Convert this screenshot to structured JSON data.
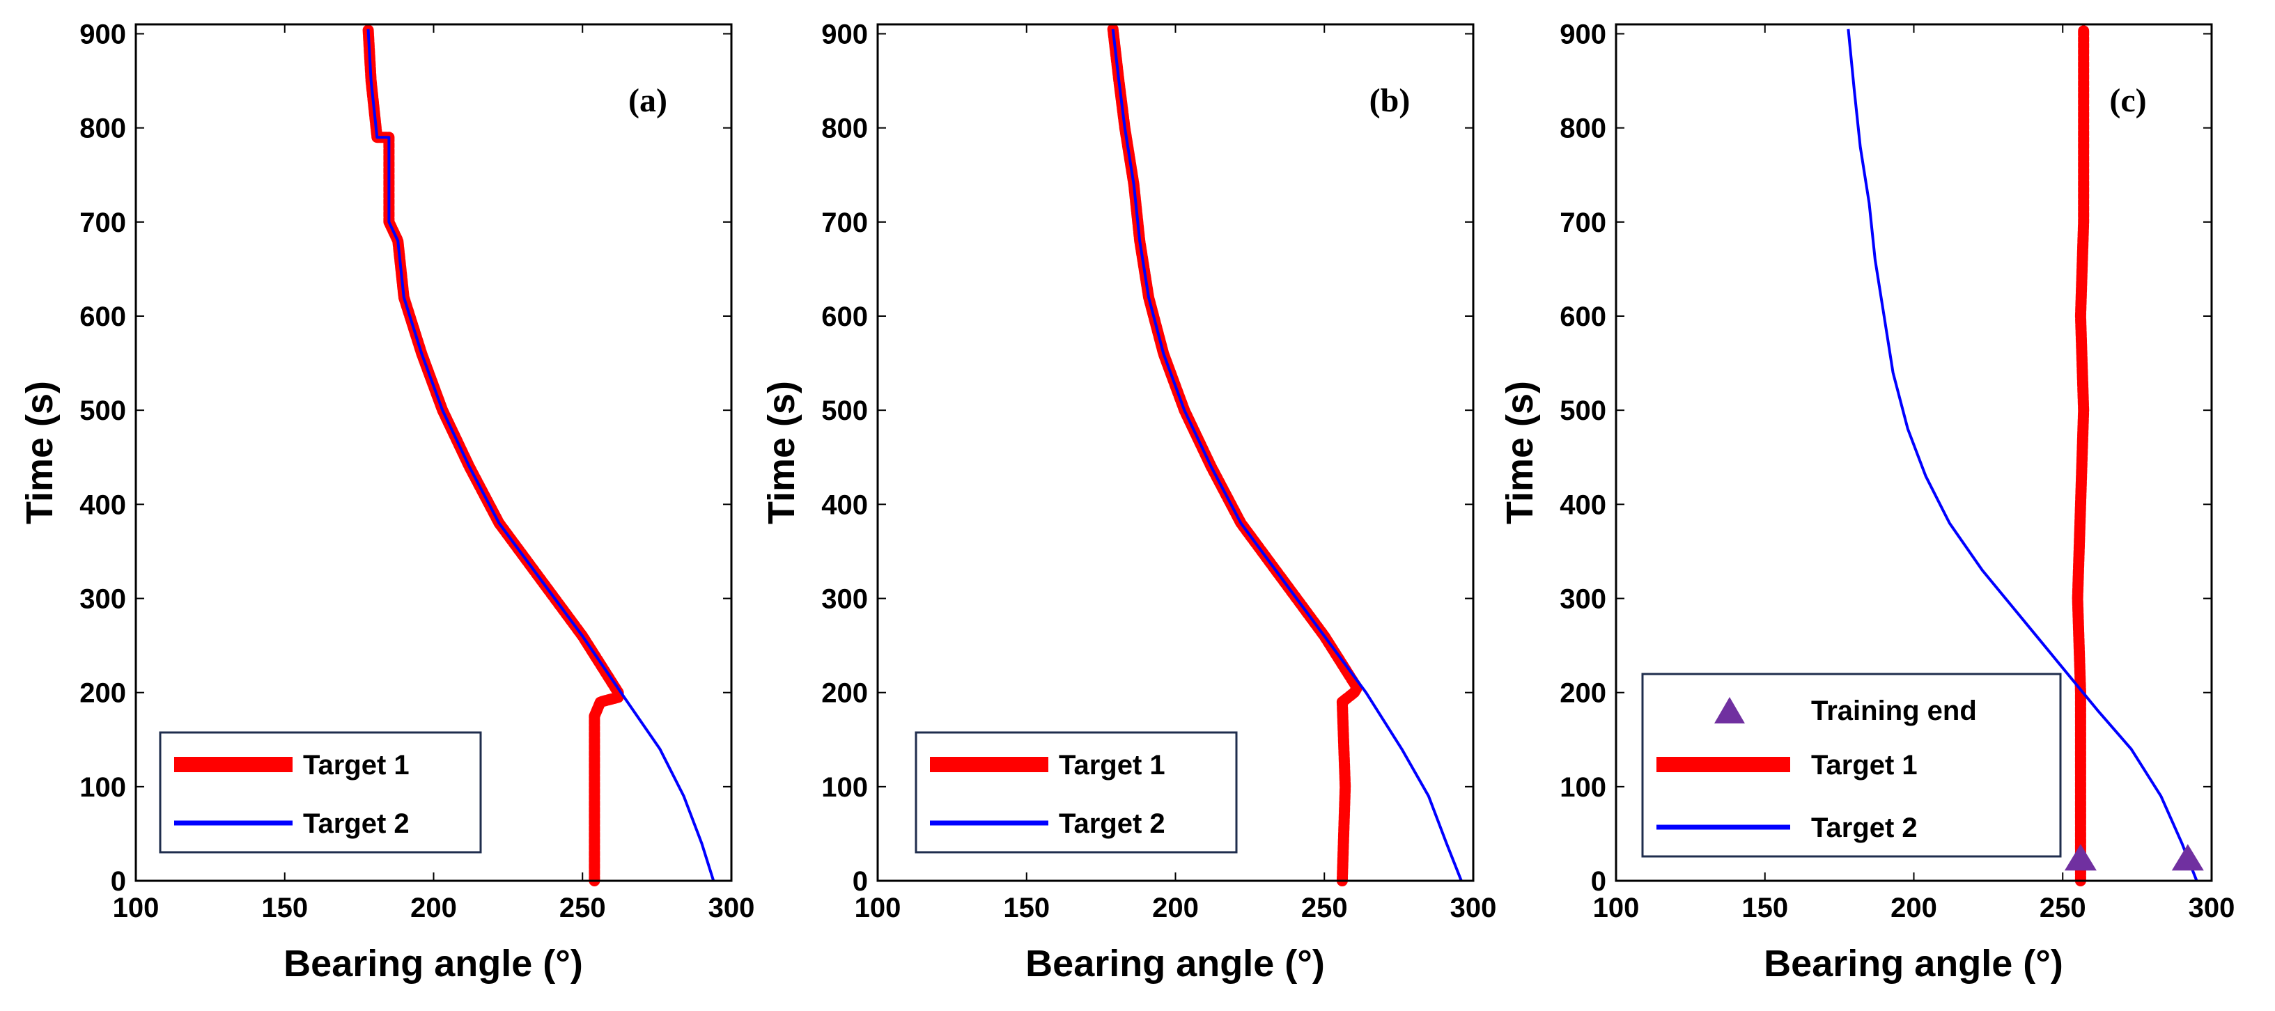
{
  "chart_data": [
    {
      "type": "line",
      "panel_label": "(a)",
      "xlabel": "Bearing angle (°)",
      "ylabel": "Time (s)",
      "xlim": [
        100,
        300
      ],
      "ylim": [
        0,
        910
      ],
      "xticks": [
        "100",
        "150",
        "200",
        "250",
        "300"
      ],
      "yticks": [
        "0",
        "100",
        "200",
        "300",
        "400",
        "500",
        "600",
        "700",
        "800",
        "900"
      ],
      "series": [
        {
          "name": "Target 1",
          "color": "#ff0000",
          "style": "thick-noisy",
          "points": [
            [
              254,
              0
            ],
            [
              254,
              100
            ],
            [
              254,
              175
            ],
            [
              256,
              190
            ],
            [
              262,
              195
            ],
            [
              262,
              200
            ],
            [
              250,
              260
            ],
            [
              236,
              320
            ],
            [
              222,
              380
            ],
            [
              212,
              440
            ],
            [
              203,
              500
            ],
            [
              196,
              560
            ],
            [
              190,
              620
            ],
            [
              188,
              680
            ],
            [
              185,
              700
            ],
            [
              185,
              790
            ],
            [
              181,
              790
            ],
            [
              179,
              850
            ],
            [
              178,
              905
            ]
          ]
        },
        {
          "name": "Target 2",
          "color": "#0000ff",
          "style": "line",
          "points": [
            [
              294,
              0
            ],
            [
              290,
              40
            ],
            [
              284,
              90
            ],
            [
              276,
              140
            ],
            [
              264,
              195
            ],
            [
              250,
              260
            ],
            [
              236,
              320
            ],
            [
              222,
              380
            ],
            [
              212,
              440
            ],
            [
              203,
              500
            ],
            [
              196,
              560
            ],
            [
              190,
              620
            ],
            [
              188,
              680
            ],
            [
              185,
              700
            ],
            [
              185,
              790
            ],
            [
              181,
              790
            ],
            [
              179,
              850
            ],
            [
              178,
              905
            ]
          ]
        }
      ],
      "legend": {
        "position": "bottom-left",
        "entries": [
          "Target 1",
          "Target 2"
        ]
      }
    },
    {
      "type": "line",
      "panel_label": "(b)",
      "xlabel": "Bearing angle (°)",
      "ylabel": "Time (s)",
      "xlim": [
        100,
        300
      ],
      "ylim": [
        0,
        910
      ],
      "xticks": [
        "100",
        "150",
        "200",
        "250",
        "300"
      ],
      "yticks": [
        "0",
        "100",
        "200",
        "300",
        "400",
        "500",
        "600",
        "700",
        "800",
        "900"
      ],
      "series": [
        {
          "name": "Target 1",
          "color": "#ff0000",
          "style": "thick-noisy",
          "points": [
            [
              256,
              0
            ],
            [
              257,
              100
            ],
            [
              256,
              190
            ],
            [
              260,
              200
            ],
            [
              261,
              205
            ],
            [
              250,
              260
            ],
            [
              236,
              320
            ],
            [
              222,
              380
            ],
            [
              212,
              440
            ],
            [
              203,
              500
            ],
            [
              196,
              560
            ],
            [
              191,
              620
            ],
            [
              188,
              680
            ],
            [
              186,
              740
            ],
            [
              183,
              800
            ],
            [
              181,
              850
            ],
            [
              179,
              905
            ]
          ]
        },
        {
          "name": "Target 2",
          "color": "#0000ff",
          "style": "line",
          "points": [
            [
              296,
              0
            ],
            [
              291,
              40
            ],
            [
              285,
              90
            ],
            [
              276,
              140
            ],
            [
              264,
              200
            ],
            [
              250,
              260
            ],
            [
              236,
              320
            ],
            [
              222,
              380
            ],
            [
              212,
              440
            ],
            [
              203,
              500
            ],
            [
              196,
              560
            ],
            [
              191,
              620
            ],
            [
              188,
              680
            ],
            [
              186,
              740
            ],
            [
              183,
              800
            ],
            [
              181,
              850
            ],
            [
              179,
              905
            ]
          ]
        }
      ],
      "legend": {
        "position": "bottom-left",
        "entries": [
          "Target 1",
          "Target 2"
        ]
      }
    },
    {
      "type": "line",
      "panel_label": "(c)",
      "xlabel": "Bearing angle (°)",
      "ylabel": "Time (s)",
      "xlim": [
        100,
        300
      ],
      "ylim": [
        0,
        910
      ],
      "xticks": [
        "100",
        "150",
        "200",
        "250",
        "300"
      ],
      "yticks": [
        "0",
        "100",
        "200",
        "300",
        "400",
        "500",
        "600",
        "700",
        "800",
        "900"
      ],
      "series": [
        {
          "name": "Training end",
          "color": "#7030a0",
          "style": "marker-triangle",
          "points": [
            [
              256,
              25
            ],
            [
              292,
              25
            ]
          ]
        },
        {
          "name": "Target 1",
          "color": "#ff0000",
          "style": "thick-noisy",
          "points": [
            [
              256,
              0
            ],
            [
              256,
              100
            ],
            [
              256,
              200
            ],
            [
              255,
              300
            ],
            [
              256,
              400
            ],
            [
              257,
              500
            ],
            [
              256,
              600
            ],
            [
              257,
              700
            ],
            [
              257,
              800
            ],
            [
              257,
              905
            ]
          ]
        },
        {
          "name": "Target 2",
          "color": "#0000ff",
          "style": "line",
          "points": [
            [
              295,
              0
            ],
            [
              290,
              40
            ],
            [
              283,
              90
            ],
            [
              273,
              140
            ],
            [
              262,
              180
            ],
            [
              249,
              230
            ],
            [
              236,
              280
            ],
            [
              223,
              330
            ],
            [
              212,
              380
            ],
            [
              204,
              430
            ],
            [
              198,
              480
            ],
            [
              193,
              540
            ],
            [
              190,
              600
            ],
            [
              187,
              660
            ],
            [
              185,
              720
            ],
            [
              182,
              780
            ],
            [
              180,
              840
            ],
            [
              178,
              905
            ]
          ]
        }
      ],
      "legend": {
        "position": "bottom-left",
        "entries": [
          "Training end",
          "Target 1",
          "Target 2"
        ]
      }
    }
  ]
}
